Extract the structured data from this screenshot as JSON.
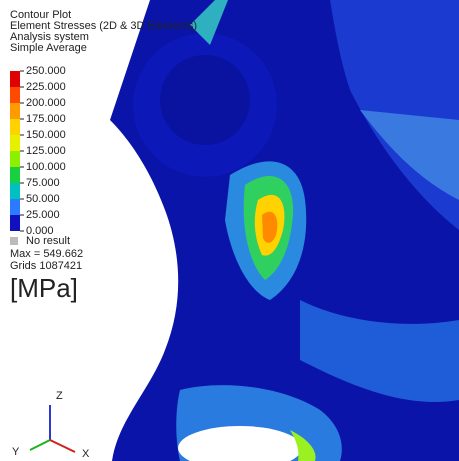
{
  "header": {
    "lines": [
      "Contour Plot",
      "Element Stresses (2D & 3D Elements)",
      "Analysis system",
      "Simple Average"
    ]
  },
  "legend": {
    "labels": [
      "250.000",
      "225.000",
      "200.000",
      "175.000",
      "150.000",
      "125.000",
      "100.000",
      "75.000",
      "50.000",
      "25.000",
      "0.000"
    ],
    "colors": [
      "#e00000",
      "#ff4a00",
      "#ff9a00",
      "#ffd200",
      "#e6f000",
      "#8cf000",
      "#18d040",
      "#00c0c0",
      "#2a7bff",
      "#1010c0"
    ],
    "no_result": "No result",
    "max": "Max = 549.662",
    "grids": "Grids 1087421"
  },
  "unit": "[MPa]",
  "triad": {
    "z": "Z",
    "y": "Y",
    "x": "X"
  }
}
